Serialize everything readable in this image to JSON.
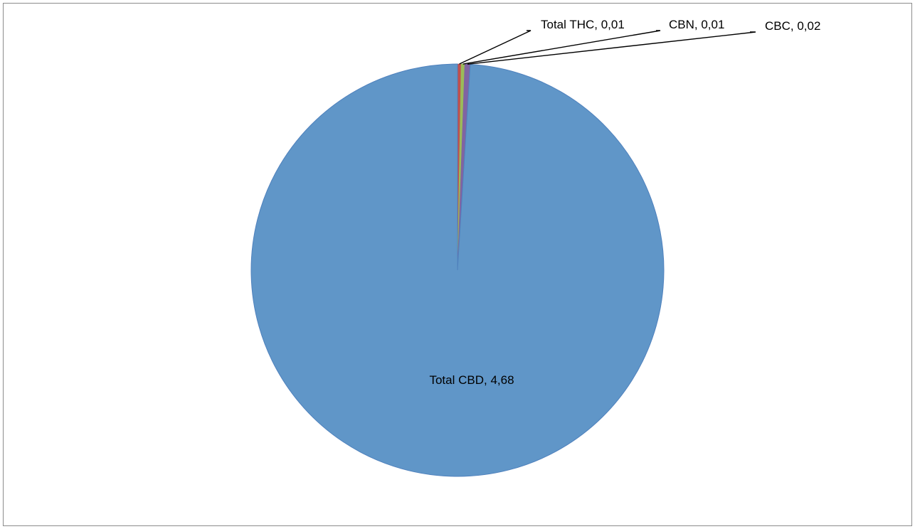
{
  "chart_data": {
    "type": "pie",
    "title": "",
    "slices": [
      {
        "label": "Total CBD",
        "value": 4.68,
        "display": "4,68",
        "color": "#6096C8"
      },
      {
        "label": "Total THC",
        "value": 0.01,
        "display": "0,01",
        "color": "#C0504D"
      },
      {
        "label": "CBN",
        "value": 0.01,
        "display": "0,01",
        "color": "#9BBB59"
      },
      {
        "label": "CBC",
        "value": 0.02,
        "display": "0,02",
        "color": "#8064A2"
      }
    ],
    "data_labels": [
      "Total CBD, 4,68",
      "Total THC, 0,01",
      "CBN, 0,01",
      "CBC, 0,02"
    ],
    "legend": "none",
    "start_angle": "12 o'clock"
  }
}
